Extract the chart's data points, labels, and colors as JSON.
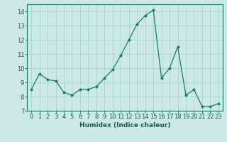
{
  "x": [
    0,
    1,
    2,
    3,
    4,
    5,
    6,
    7,
    8,
    9,
    10,
    11,
    12,
    13,
    14,
    15,
    16,
    17,
    18,
    19,
    20,
    21,
    22,
    23
  ],
  "y": [
    8.5,
    9.6,
    9.2,
    9.1,
    8.3,
    8.1,
    8.5,
    8.5,
    8.7,
    9.3,
    9.9,
    10.9,
    12.0,
    13.1,
    13.7,
    14.1,
    9.3,
    10.0,
    11.5,
    8.1,
    8.5,
    7.3,
    7.3,
    7.5
  ],
  "line_color": "#1a7a6e",
  "marker": "D",
  "marker_size": 2.0,
  "bg_color": "#cce9e5",
  "grid_color": "#aad4ce",
  "xlabel": "Humidex (Indice chaleur)",
  "ylim": [
    7,
    14.5
  ],
  "yticks": [
    7,
    8,
    9,
    10,
    11,
    12,
    13,
    14
  ],
  "xlim": [
    -0.5,
    23.5
  ],
  "xticks": [
    0,
    1,
    2,
    3,
    4,
    5,
    6,
    7,
    8,
    9,
    10,
    11,
    12,
    13,
    14,
    15,
    16,
    17,
    18,
    19,
    20,
    21,
    22,
    23
  ],
  "axis_fontsize": 6.5,
  "tick_fontsize": 6.0,
  "tick_color": "#1a5a54",
  "label_color": "#1a5a54",
  "spine_color": "#1a7a6e"
}
